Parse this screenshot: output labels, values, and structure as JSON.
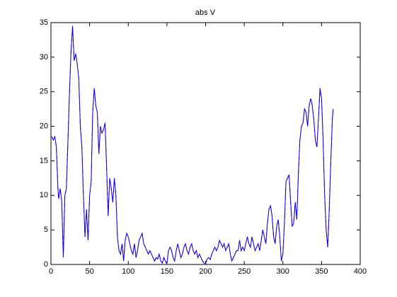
{
  "chart_data": {
    "type": "line",
    "title": "abs V",
    "xlim": [
      0,
      400
    ],
    "xticks": [
      0,
      50,
      100,
      150,
      200,
      250,
      300,
      350,
      400
    ],
    "ylim": [
      0,
      35
    ],
    "yticks": [
      0,
      5,
      10,
      15,
      20,
      25,
      30,
      35
    ],
    "grid": false,
    "x": [
      1,
      3,
      5,
      7,
      9,
      10,
      12,
      14,
      16,
      18,
      20,
      22,
      24,
      26,
      28,
      30,
      32,
      34,
      36,
      38,
      40,
      42,
      44,
      46,
      48,
      50,
      52,
      54,
      56,
      58,
      60,
      62,
      64,
      66,
      68,
      70,
      72,
      74,
      76,
      78,
      80,
      82,
      84,
      86,
      88,
      90,
      92,
      94,
      96,
      98,
      100,
      102,
      104,
      106,
      108,
      110,
      112,
      114,
      116,
      118,
      120,
      122,
      124,
      126,
      128,
      130,
      132,
      134,
      136,
      138,
      140,
      142,
      144,
      146,
      148,
      150,
      152,
      154,
      156,
      158,
      160,
      162,
      164,
      166,
      168,
      170,
      172,
      174,
      176,
      178,
      180,
      182,
      184,
      186,
      188,
      190,
      192,
      194,
      196,
      198,
      200,
      202,
      204,
      206,
      208,
      210,
      212,
      214,
      216,
      218,
      220,
      222,
      224,
      226,
      228,
      230,
      232,
      234,
      236,
      238,
      240,
      242,
      244,
      246,
      248,
      250,
      252,
      254,
      256,
      258,
      260,
      262,
      264,
      266,
      268,
      270,
      272,
      274,
      276,
      278,
      280,
      282,
      284,
      286,
      288,
      290,
      292,
      294,
      296,
      298,
      300,
      302,
      304,
      306,
      308,
      310,
      312,
      314,
      316,
      318,
      320,
      322,
      324,
      326,
      328,
      330,
      332,
      334,
      336,
      338,
      340,
      342,
      344,
      346,
      348,
      350,
      352,
      354,
      356,
      358,
      360,
      362,
      364,
      365
    ],
    "series": [
      {
        "color": "#ff0000",
        "dash": true,
        "values": [
          18.5,
          18,
          18.5,
          17,
          11,
          9.5,
          11,
          9,
          1.2,
          10,
          11,
          18,
          25,
          31,
          34.3,
          29.5,
          30.5,
          29,
          27,
          20,
          17,
          10,
          4,
          8,
          3.5,
          10,
          12,
          22,
          25.5,
          23,
          22,
          16,
          20,
          19,
          19.5,
          20.5,
          14,
          7,
          12.5,
          11,
          9,
          12.5,
          10,
          4,
          2,
          1.5,
          3,
          0.5,
          3.5,
          4.5,
          4,
          3,
          2,
          1.5,
          3,
          1,
          2,
          3.5,
          4,
          4.5,
          3,
          2.5,
          2,
          1.5,
          2,
          1.5,
          1,
          0.5,
          1,
          0.8,
          1.5,
          0.5,
          0.2,
          1,
          0.5,
          0.1,
          2,
          2.5,
          2,
          1,
          0.5,
          2,
          3,
          2,
          1,
          1.5,
          2.5,
          3,
          2,
          1.5,
          2.5,
          3,
          2,
          1.5,
          2,
          1,
          1.5,
          1,
          0.5,
          0.2,
          0.1,
          0.8,
          1,
          0.7,
          1.5,
          2,
          2.5,
          2,
          2.5,
          3.5,
          3,
          2.5,
          3,
          2,
          2.5,
          3,
          1.5,
          0.5,
          1,
          1.5,
          2,
          2,
          3.5,
          2,
          2.5,
          2,
          3,
          4,
          3,
          2.5,
          4,
          3,
          2,
          2.5,
          3,
          2,
          3.5,
          5,
          4,
          3,
          6,
          8,
          8.5,
          7,
          4,
          3,
          5.5,
          6.5,
          4,
          0.5,
          1.5,
          6,
          12,
          12.5,
          13,
          9,
          5.5,
          6,
          9,
          6.5,
          13,
          18,
          20,
          20.5,
          22.5,
          22,
          20,
          23,
          24,
          23,
          21,
          18,
          17,
          21,
          25.5,
          24,
          18,
          10,
          5,
          2.5,
          8,
          15,
          21,
          22.5
        ]
      },
      {
        "color": "#0000ff",
        "dash": false,
        "values": [
          18.5,
          18,
          18.5,
          17,
          11,
          9.5,
          11,
          9,
          1,
          10,
          11,
          18,
          25,
          31,
          34.5,
          29.5,
          30.5,
          29,
          27,
          20,
          17,
          10,
          4,
          8,
          3.5,
          10,
          12,
          22,
          25.5,
          23,
          22,
          16,
          20,
          19,
          19.5,
          20.5,
          14,
          7,
          12.5,
          11,
          9,
          12.5,
          10,
          4,
          2,
          1.5,
          3,
          0.5,
          3.5,
          4.5,
          4,
          3,
          2,
          1.5,
          3,
          1,
          2,
          3.5,
          4,
          4.5,
          3,
          2.5,
          2,
          1.5,
          2,
          1.5,
          1,
          0.5,
          1,
          0.8,
          1.5,
          0.5,
          0.2,
          1,
          0.5,
          0.1,
          2,
          2.5,
          2,
          1,
          0.5,
          2,
          3,
          2,
          1,
          1.5,
          2.5,
          3,
          2,
          1.5,
          2.5,
          3,
          2,
          1.5,
          2,
          1,
          1.5,
          1,
          0.5,
          0.2,
          0.1,
          0.8,
          1,
          0.7,
          1.5,
          2,
          2.5,
          2,
          2.5,
          3.5,
          3,
          2.5,
          3,
          2,
          2.5,
          3,
          1.5,
          0.5,
          1,
          1.5,
          2,
          2,
          3.5,
          2,
          2.5,
          2,
          3,
          4,
          3,
          2.5,
          4,
          3,
          2,
          2.5,
          3,
          2,
          3.5,
          5,
          4,
          3,
          6,
          8,
          8.5,
          7,
          4,
          3,
          5.5,
          6.5,
          4,
          0.5,
          1.5,
          6,
          12,
          12.5,
          13,
          9,
          5.5,
          6,
          9,
          6.5,
          13,
          18,
          20,
          20.5,
          22.5,
          22,
          20,
          23,
          24,
          23,
          21,
          18,
          17,
          21,
          25.5,
          24,
          18,
          10,
          5,
          2.5,
          8,
          15,
          21,
          22.5
        ]
      }
    ]
  }
}
